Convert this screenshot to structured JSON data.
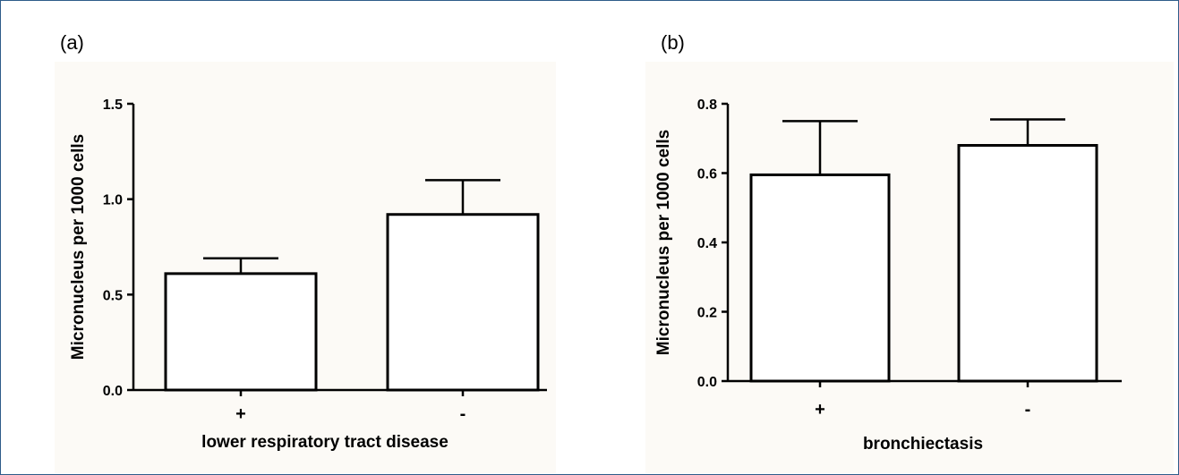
{
  "chart_data": [
    {
      "panel": "(a)",
      "type": "bar",
      "categories": [
        "+",
        "-"
      ],
      "values": [
        0.61,
        0.92
      ],
      "error_upper": [
        0.69,
        1.1
      ],
      "xlabel": "lower respiratory tract disease",
      "ylabel": "Micronucleus per 1000 cells",
      "ylim": [
        0,
        1.5
      ],
      "yticks": [
        "0.0",
        "0.5",
        "1.0",
        "1.5"
      ],
      "ytick_values": [
        0,
        0.5,
        1.0,
        1.5
      ],
      "grid": false,
      "legend": "none"
    },
    {
      "panel": "(b)",
      "type": "bar",
      "categories": [
        "+",
        "-"
      ],
      "values": [
        0.595,
        0.68
      ],
      "error_upper": [
        0.75,
        0.755
      ],
      "xlabel": "bronchiectasis",
      "ylabel": "Micronucleus per 1000 cells",
      "ylim": [
        0,
        0.8
      ],
      "yticks": [
        "0.0",
        "0.2",
        "0.4",
        "0.6",
        "0.8"
      ],
      "ytick_values": [
        0,
        0.2,
        0.4,
        0.6,
        0.8
      ],
      "grid": false,
      "legend": "none"
    }
  ],
  "colors": {
    "bar_fill": "#ffffff",
    "bar_stroke": "#000000",
    "panel_background": "#fcfaf6",
    "frame": "#2e5c8a"
  }
}
